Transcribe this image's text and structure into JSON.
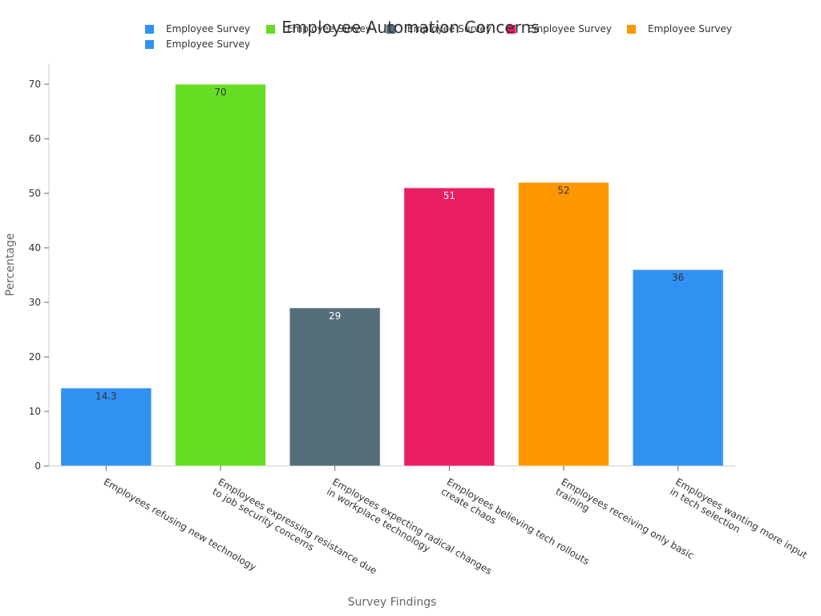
{
  "chart_data": {
    "type": "bar",
    "title": "Employee Automation Concerns",
    "xlabel": "Survey Findings",
    "ylabel": "Percentage",
    "ylim": [
      0,
      70
    ],
    "yticks": [
      0,
      10,
      20,
      30,
      40,
      50,
      60,
      70
    ],
    "grid": false,
    "legend_position": "top",
    "categories": [
      [
        "Employees refusing new technology"
      ],
      [
        "Employees expressing resistance due",
        "to job security concerns"
      ],
      [
        "Employees expecting radical changes",
        "in workplace technology"
      ],
      [
        "Employees believing tech rollouts",
        "create chaos"
      ],
      [
        "Employees receiving only basic",
        "training"
      ],
      [
        "Employees wanting more input",
        "in tech selection"
      ]
    ],
    "values": [
      14.3,
      70,
      29,
      51,
      52,
      36
    ],
    "value_labels": [
      "14.3",
      "70",
      "29",
      "51",
      "52",
      "36"
    ],
    "colors": [
      "#3091f2",
      "#66dd22",
      "#546e7a",
      "#e91e63",
      "#ff9800",
      "#3091f2"
    ],
    "label_colors": [
      "#333333",
      "#333333",
      "#ffffff",
      "#ffffff",
      "#333333",
      "#333333"
    ],
    "legend": [
      {
        "name": "Employee Survey",
        "color": "#3091f2"
      },
      {
        "name": "Employee Survey",
        "color": "#66dd22"
      },
      {
        "name": "Employee Survey",
        "color": "#546e7a"
      },
      {
        "name": "Employee Survey",
        "color": "#e91e63"
      },
      {
        "name": "Employee Survey",
        "color": "#ff9800"
      },
      {
        "name": "Employee Survey",
        "color": "#3091f2"
      }
    ]
  }
}
